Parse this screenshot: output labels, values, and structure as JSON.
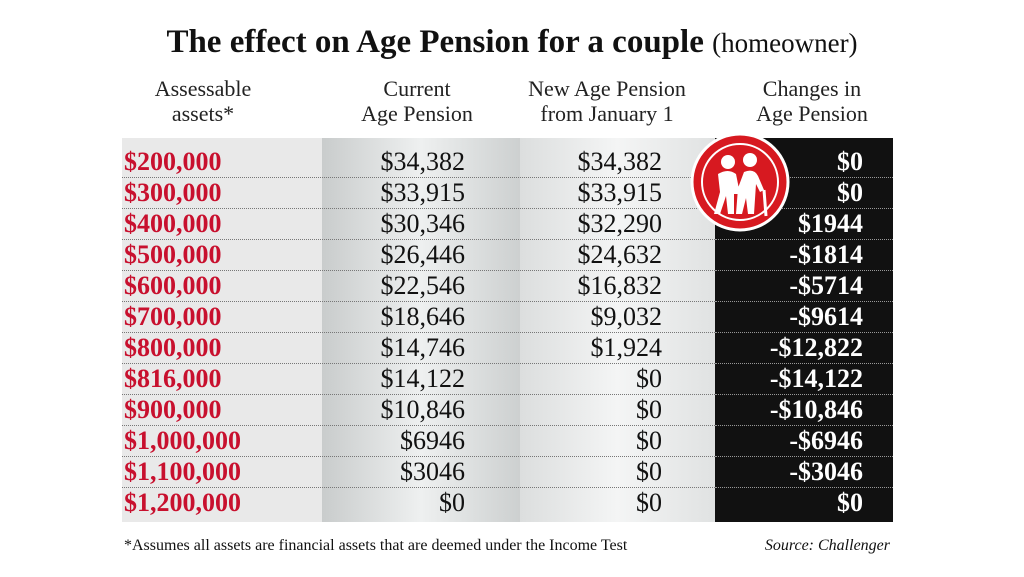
{
  "title": "The effect on Age Pension for a couple",
  "title_suffix": "(homeowner)",
  "table": {
    "headers": [
      [
        "Assessable",
        "assets*"
      ],
      [
        "Current",
        "Age Pension"
      ],
      [
        "New Age Pension",
        "from January 1"
      ],
      [
        "Changes in",
        "Age Pension"
      ]
    ],
    "rows": [
      [
        "$200,000",
        "$34,382",
        "$34,382",
        "$0"
      ],
      [
        "$300,000",
        "$33,915",
        "$33,915",
        "$0"
      ],
      [
        "$400,000",
        "$30,346",
        "$32,290",
        "$1944"
      ],
      [
        "$500,000",
        "$26,446",
        "$24,632",
        "-$1814"
      ],
      [
        "$600,000",
        "$22,546",
        "$16,832",
        "-$5714"
      ],
      [
        "$700,000",
        "$18,646",
        "$9,032",
        "-$9614"
      ],
      [
        "$800,000",
        "$14,746",
        "$1,924",
        "-$12,822"
      ],
      [
        "$816,000",
        "$14,122",
        "$0",
        "-$14,122"
      ],
      [
        "$900,000",
        "$10,846",
        "$0",
        "-$10,846"
      ],
      [
        "$1,000,000",
        "$6946",
        "$0",
        "-$6946"
      ],
      [
        "$1,100,000",
        "$3046",
        "$0",
        "-$3046"
      ],
      [
        "$1,200,000",
        "$0",
        "$0",
        "$0"
      ]
    ]
  },
  "footnote": "*Assumes all assets are financial assets that are deemed under the Income Test",
  "source": "Source: Challenger"
}
